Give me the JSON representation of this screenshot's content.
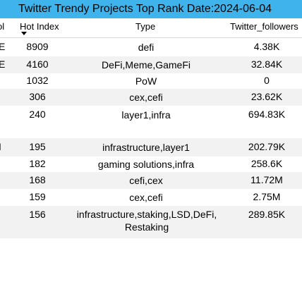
{
  "title": "Twitter Trendy Projects Top Rank Date:2024-06-04",
  "columns": {
    "symbol": "ol",
    "hot_index": "Hot Index",
    "type": "Type",
    "twitter_followers": "Twitter_followers"
  },
  "rows": [
    {
      "symbol": "E",
      "hot_index": "8909",
      "type": "defi",
      "twitter_followers": "4.38K"
    },
    {
      "symbol": "E",
      "hot_index": "4160",
      "type": "DeFi,Meme,GameFi",
      "twitter_followers": "32.84K"
    },
    {
      "symbol": "",
      "hot_index": "1032",
      "type": "PoW",
      "twitter_followers": "0"
    },
    {
      "symbol": "",
      "hot_index": "306",
      "type": "cex,cefi",
      "twitter_followers": "23.62K"
    },
    {
      "symbol": "",
      "hot_index": "240",
      "type": "layer1,infra",
      "twitter_followers": "694.83K"
    },
    {
      "symbol": "I",
      "hot_index": "195",
      "type": "infrastructure,layer1",
      "twitter_followers": "202.79K"
    },
    {
      "symbol": "",
      "hot_index": "182",
      "type": "gaming solutions,infra",
      "twitter_followers": "258.6K"
    },
    {
      "symbol": "",
      "hot_index": "168",
      "type": "cefi,cex",
      "twitter_followers": "11.72M"
    },
    {
      "symbol": "",
      "hot_index": "159",
      "type": "cex,cefi",
      "twitter_followers": "2.75M"
    },
    {
      "symbol": "",
      "hot_index": "156",
      "type": "infrastructure,staking,LSD,DeFi, Restaking",
      "twitter_followers": "289.85K"
    }
  ]
}
